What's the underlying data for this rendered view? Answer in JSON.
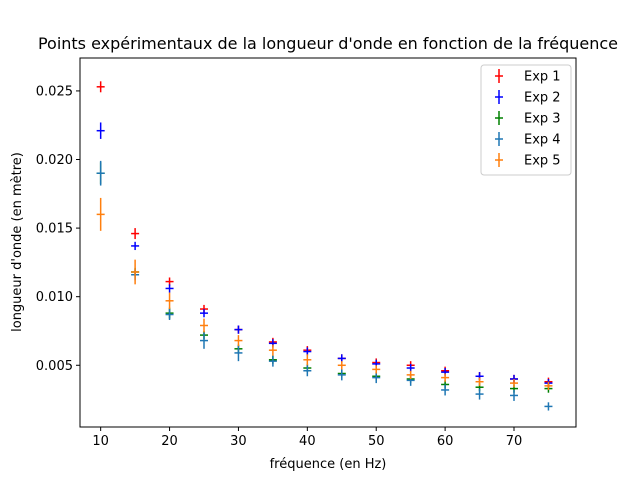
{
  "chart_data": {
    "type": "scatter",
    "title": "Points expérimentaux de la longueur d'onde en fonction de la fréquence",
    "xlabel": "fréquence (en Hz)",
    "ylabel": "longueur d'onde (en mètre)",
    "xlim": [
      7,
      79
    ],
    "ylim": [
      0.0005,
      0.0274
    ],
    "xticks": [
      10,
      20,
      30,
      40,
      50,
      60,
      70
    ],
    "xtick_labels": [
      "10",
      "20",
      "30",
      "40",
      "50",
      "60",
      "70"
    ],
    "yticks": [
      0.005,
      0.01,
      0.015,
      0.02,
      0.025
    ],
    "ytick_labels": [
      "0.005",
      "0.010",
      "0.015",
      "0.020",
      "0.025"
    ],
    "grid": false,
    "legend_position": "top-right",
    "error_bars": true,
    "x": [
      10,
      15,
      20,
      25,
      30,
      35,
      40,
      45,
      50,
      55,
      60,
      65,
      70,
      75
    ],
    "series": [
      {
        "name": "Exp 1",
        "color": "#ff0000",
        "values": [
          0.0253,
          0.0146,
          0.0111,
          0.0091,
          0.0076,
          0.0067,
          0.0061,
          0.0055,
          0.0052,
          0.005,
          0.0046,
          0.0042,
          0.004,
          0.0038
        ],
        "errors": [
          0.0004,
          0.0004,
          0.0003,
          0.0003,
          0.0003,
          0.0003,
          0.0003,
          0.0003,
          0.0003,
          0.0003,
          0.0003,
          0.0003,
          0.0003,
          0.0003
        ]
      },
      {
        "name": "Exp 2",
        "color": "#0000ff",
        "values": [
          0.0221,
          0.0137,
          0.0106,
          0.0088,
          0.0076,
          0.0066,
          0.006,
          0.0055,
          0.0051,
          0.0048,
          0.0045,
          0.0042,
          0.004,
          0.0037
        ],
        "errors": [
          0.0006,
          0.0003,
          0.0003,
          0.0003,
          0.0003,
          0.0003,
          0.0003,
          0.0003,
          0.0003,
          0.0003,
          0.0003,
          0.0003,
          0.0003,
          0.0003
        ]
      },
      {
        "name": "Exp 3",
        "color": "#008000",
        "values": [
          0.019,
          0.0118,
          0.0088,
          0.0072,
          0.0062,
          0.0054,
          0.0048,
          0.0044,
          0.0042,
          0.004,
          0.0036,
          0.0034,
          0.0033,
          0.0033
        ],
        "errors": [
          0.0008,
          0.0003,
          0.0004,
          0.0003,
          0.0003,
          0.0003,
          0.0003,
          0.0003,
          0.0003,
          0.0003,
          0.0003,
          0.0003,
          0.0003,
          0.0003
        ]
      },
      {
        "name": "Exp 4",
        "color": "#1f77b4",
        "values": [
          0.019,
          0.0116,
          0.0087,
          0.0068,
          0.0059,
          0.0053,
          0.0046,
          0.0043,
          0.0041,
          0.0039,
          0.0032,
          0.0029,
          0.0028,
          0.002
        ],
        "errors": [
          0.0009,
          0.0004,
          0.0004,
          0.0006,
          0.0006,
          0.0004,
          0.0004,
          0.0004,
          0.0004,
          0.0004,
          0.0004,
          0.0004,
          0.0004,
          0.0003
        ]
      },
      {
        "name": "Exp 5",
        "color": "#ff7f0e",
        "values": [
          0.016,
          0.0118,
          0.0097,
          0.0079,
          0.0068,
          0.0061,
          0.0054,
          0.005,
          0.0047,
          0.0043,
          0.0041,
          0.0038,
          0.0037,
          0.0035
        ],
        "errors": [
          0.0012,
          0.0009,
          0.0006,
          0.0005,
          0.0004,
          0.0004,
          0.0004,
          0.0003,
          0.0003,
          0.0003,
          0.0003,
          0.0003,
          0.0003,
          0.0003
        ]
      }
    ]
  }
}
